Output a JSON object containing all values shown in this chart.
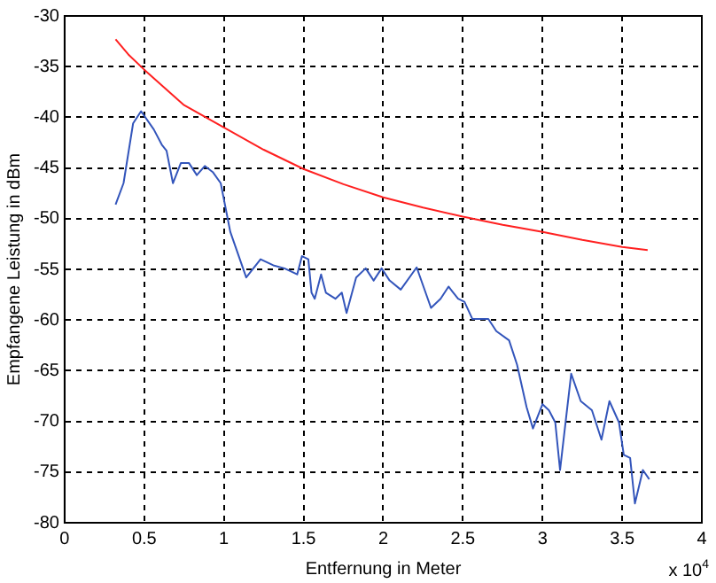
{
  "chart_data": {
    "type": "line",
    "xlabel": "Entfernung in Meter",
    "ylabel": "Empfangene Leistung in dBm",
    "annotations": [
      "x 10$^{4}$"
    ],
    "xlim": [
      0,
      4
    ],
    "xticks": [
      0,
      0.5,
      1,
      1.5,
      2,
      2.5,
      3,
      3.5,
      4
    ],
    "ylim": [
      -80,
      -30
    ],
    "yticks": [
      -80,
      -75,
      -70,
      -65,
      -60,
      -55,
      -50,
      -45,
      -40,
      -35,
      -30
    ],
    "grid": true,
    "marker": "none",
    "series": [
      {
        "color": "#ff2020",
        "x": [
          0.32,
          0.4,
          0.5,
          0.75,
          1,
          1.25,
          1.5,
          1.75,
          2,
          2.25,
          2.5,
          2.75,
          3,
          3.25,
          3.5,
          3.66
        ],
        "values": [
          -32.3,
          -33.8,
          -35.3,
          -38.8,
          -41,
          -43.2,
          -45.1,
          -46.6,
          -47.9,
          -48.9,
          -49.8,
          -50.6,
          -51.3,
          -52.1,
          -52.8,
          -53.1
        ]
      },
      {
        "color": "#3355bb",
        "x": [
          0.32,
          0.37,
          0.43,
          0.48,
          0.56,
          0.61,
          0.64,
          0.68,
          0.73,
          0.78,
          0.83,
          0.88,
          0.93,
          0.98,
          1.04,
          1.14,
          1.23,
          1.31,
          1.38,
          1.46,
          1.49,
          1.53,
          1.55,
          1.57,
          1.61,
          1.64,
          1.7,
          1.74,
          1.77,
          1.83,
          1.89,
          1.94,
          1.99,
          2.04,
          2.11,
          2.21,
          2.3,
          2.36,
          2.41,
          2.47,
          2.51,
          2.56,
          2.66,
          2.71,
          2.79,
          2.84,
          2.9,
          2.94,
          3,
          3.04,
          3.08,
          3.11,
          3.18,
          3.24,
          3.31,
          3.37,
          3.42,
          3.48,
          3.51,
          3.55,
          3.58,
          3.63,
          3.67
        ],
        "values": [
          -48.6,
          -46.5,
          -40.6,
          -39.4,
          -41.2,
          -42.7,
          -43.3,
          -46.5,
          -44.5,
          -44.5,
          -45.7,
          -44.8,
          -45.4,
          -46.5,
          -51.3,
          -55.8,
          -54,
          -54.6,
          -54.9,
          -55.5,
          -53.7,
          -54,
          -57.3,
          -57.9,
          -55.5,
          -57.3,
          -57.9,
          -57.3,
          -59.3,
          -55.8,
          -54.9,
          -56.1,
          -54.9,
          -56.1,
          -57,
          -54.8,
          -58.8,
          -57.9,
          -56.7,
          -57.9,
          -58.2,
          -59.9,
          -59.9,
          -61.1,
          -62,
          -64.4,
          -68.6,
          -70.7,
          -68.3,
          -68.9,
          -70.1,
          -74.8,
          -65.3,
          -68,
          -68.9,
          -71.8,
          -68,
          -70.1,
          -73.3,
          -73.6,
          -78.1,
          -74.8,
          -75.7
        ]
      }
    ]
  }
}
